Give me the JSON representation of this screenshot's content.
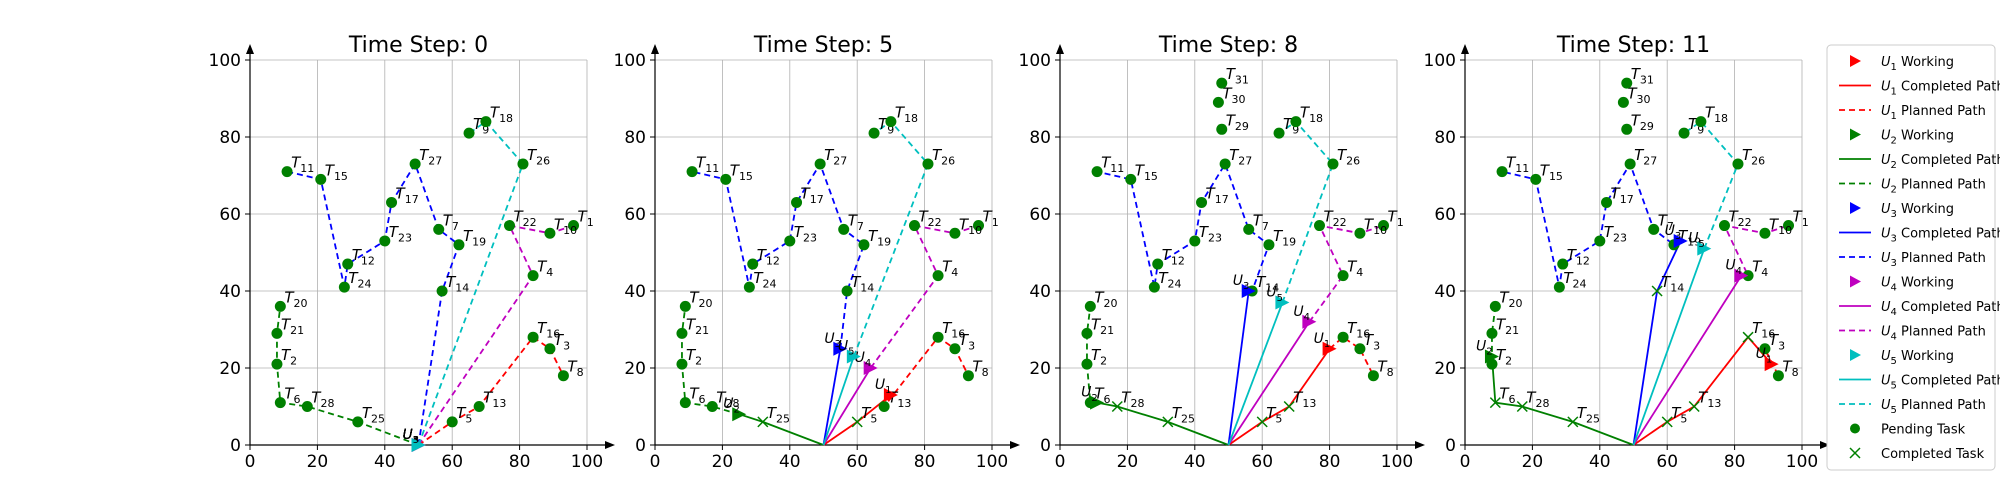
{
  "chart_data": {
    "type": "line",
    "axis": {
      "xlim": [
        0,
        100
      ],
      "ylim": [
        0,
        100
      ],
      "xticks": [
        0,
        20,
        40,
        60,
        80,
        100
      ],
      "yticks": [
        0,
        20,
        40,
        60,
        80,
        100
      ],
      "grid": true
    },
    "legend": {
      "placement": "right",
      "entries": [
        {
          "marker": "tri",
          "color": "#ff0000",
          "label_main": "U",
          "label_sub": "1",
          "label_rest": " Working"
        },
        {
          "marker": "solid",
          "color": "#ff0000",
          "label_main": "U",
          "label_sub": "1",
          "label_rest": " Completed Path"
        },
        {
          "marker": "dash",
          "color": "#ff0000",
          "label_main": "U",
          "label_sub": "1",
          "label_rest": " Planned Path"
        },
        {
          "marker": "tri",
          "color": "#008000",
          "label_main": "U",
          "label_sub": "2",
          "label_rest": " Working"
        },
        {
          "marker": "solid",
          "color": "#008000",
          "label_main": "U",
          "label_sub": "2",
          "label_rest": " Completed Path"
        },
        {
          "marker": "dash",
          "color": "#008000",
          "label_main": "U",
          "label_sub": "2",
          "label_rest": " Planned Path"
        },
        {
          "marker": "tri",
          "color": "#0000ff",
          "label_main": "U",
          "label_sub": "3",
          "label_rest": " Working"
        },
        {
          "marker": "solid",
          "color": "#0000ff",
          "label_main": "U",
          "label_sub": "3",
          "label_rest": " Completed Path"
        },
        {
          "marker": "dash",
          "color": "#0000ff",
          "label_main": "U",
          "label_sub": "3",
          "label_rest": " Planned Path"
        },
        {
          "marker": "tri",
          "color": "#bf00bf",
          "label_main": "U",
          "label_sub": "4",
          "label_rest": " Working"
        },
        {
          "marker": "solid",
          "color": "#bf00bf",
          "label_main": "U",
          "label_sub": "4",
          "label_rest": " Completed Path"
        },
        {
          "marker": "dash",
          "color": "#bf00bf",
          "label_main": "U",
          "label_sub": "4",
          "label_rest": " Planned Path"
        },
        {
          "marker": "tri",
          "color": "#00bfbf",
          "label_main": "U",
          "label_sub": "5",
          "label_rest": " Working"
        },
        {
          "marker": "solid",
          "color": "#00bfbf",
          "label_main": "U",
          "label_sub": "5",
          "label_rest": " Completed Path"
        },
        {
          "marker": "dash",
          "color": "#00bfbf",
          "label_main": "U",
          "label_sub": "5",
          "label_rest": " Planned Path"
        },
        {
          "marker": "dot",
          "color": "#008000",
          "label_main": "Pending Task",
          "label_sub": "",
          "label_rest": ""
        },
        {
          "marker": "x",
          "color": "#008000",
          "label_main": "Completed Task",
          "label_sub": "",
          "label_rest": ""
        }
      ]
    },
    "depot": [
      50,
      0
    ],
    "tasks": [
      {
        "id": "1",
        "x": 96,
        "y": 57
      },
      {
        "id": "2",
        "x": 8,
        "y": 21
      },
      {
        "id": "3",
        "x": 89,
        "y": 25
      },
      {
        "id": "4",
        "x": 84,
        "y": 44
      },
      {
        "id": "5",
        "x": 60,
        "y": 6
      },
      {
        "id": "6",
        "x": 9,
        "y": 11
      },
      {
        "id": "7",
        "x": 56,
        "y": 56
      },
      {
        "id": "8",
        "x": 93,
        "y": 18
      },
      {
        "id": "9",
        "x": 65,
        "y": 81
      },
      {
        "id": "10",
        "x": 89,
        "y": 55
      },
      {
        "id": "11",
        "x": 11,
        "y": 71
      },
      {
        "id": "12",
        "x": 29,
        "y": 47
      },
      {
        "id": "13",
        "x": 68,
        "y": 10
      },
      {
        "id": "14",
        "x": 57,
        "y": 40
      },
      {
        "id": "15",
        "x": 21,
        "y": 69
      },
      {
        "id": "16",
        "x": 84,
        "y": 28
      },
      {
        "id": "17",
        "x": 42,
        "y": 63
      },
      {
        "id": "18",
        "x": 70,
        "y": 84
      },
      {
        "id": "19",
        "x": 62,
        "y": 52
      },
      {
        "id": "20",
        "x": 9,
        "y": 36
      },
      {
        "id": "21",
        "x": 8,
        "y": 29
      },
      {
        "id": "22",
        "x": 77,
        "y": 57
      },
      {
        "id": "23",
        "x": 40,
        "y": 53
      },
      {
        "id": "24",
        "x": 28,
        "y": 41
      },
      {
        "id": "25",
        "x": 32,
        "y": 6
      },
      {
        "id": "26",
        "x": 81,
        "y": 73
      },
      {
        "id": "27",
        "x": 49,
        "y": 73
      },
      {
        "id": "28",
        "x": 17,
        "y": 10
      },
      {
        "id": "29",
        "x": 48,
        "y": 82
      },
      {
        "id": "30",
        "x": 47,
        "y": 89
      },
      {
        "id": "31",
        "x": 48,
        "y": 94
      }
    ],
    "routes": [
      {
        "uav": "1",
        "color": "#ff0000",
        "path": [
          "5",
          "13",
          "16",
          "3",
          "8"
        ]
      },
      {
        "uav": "2",
        "color": "#008000",
        "path": [
          "25",
          "28",
          "6",
          "2",
          "21",
          "20"
        ]
      },
      {
        "uav": "3",
        "color": "#0000ff",
        "path": [
          "14",
          "19",
          "7",
          "27",
          "17",
          "23",
          "12",
          "24",
          "15",
          "11"
        ]
      },
      {
        "uav": "4",
        "color": "#bf00bf",
        "path": [
          "4",
          "22",
          "10",
          "1"
        ]
      },
      {
        "uav": "5",
        "color": "#00bfbf",
        "path": [
          "26",
          "18",
          "9"
        ]
      }
    ],
    "panels": [
      {
        "title": "Time Step: 0",
        "visible_tasks": [
          "1",
          "2",
          "3",
          "4",
          "5",
          "6",
          "7",
          "8",
          "9",
          "10",
          "11",
          "12",
          "13",
          "14",
          "15",
          "16",
          "17",
          "18",
          "19",
          "20",
          "21",
          "22",
          "23",
          "24",
          "25",
          "26",
          "27",
          "28"
        ],
        "uav_pos": {
          "1": [
            50,
            0
          ],
          "2": [
            50,
            0
          ],
          "3": [
            50,
            0
          ],
          "4": [
            50,
            0
          ],
          "5": [
            50,
            0
          ]
        },
        "completed": {
          "1": [],
          "2": [],
          "3": [],
          "4": [],
          "5": []
        }
      },
      {
        "title": "Time Step: 5",
        "visible_tasks": [
          "1",
          "2",
          "3",
          "4",
          "5",
          "6",
          "7",
          "8",
          "9",
          "10",
          "11",
          "12",
          "13",
          "14",
          "15",
          "16",
          "17",
          "18",
          "19",
          "20",
          "21",
          "22",
          "23",
          "24",
          "25",
          "26",
          "27",
          "28"
        ],
        "uav_pos": {
          "1": [
            70,
            13
          ],
          "2": [
            25,
            8
          ],
          "3": [
            55,
            25
          ],
          "4": [
            64,
            20
          ],
          "5": [
            59,
            23
          ]
        },
        "completed": {
          "1": [
            "5"
          ],
          "2": [
            "25"
          ],
          "3": [],
          "4": [],
          "5": []
        }
      },
      {
        "title": "Time Step: 8",
        "visible_tasks": [
          "1",
          "2",
          "3",
          "4",
          "5",
          "6",
          "7",
          "8",
          "9",
          "10",
          "11",
          "12",
          "13",
          "14",
          "15",
          "16",
          "17",
          "18",
          "19",
          "20",
          "21",
          "22",
          "23",
          "24",
          "25",
          "26",
          "27",
          "28",
          "29",
          "30",
          "31"
        ],
        "uav_pos": {
          "1": [
            80,
            25
          ],
          "2": [
            11,
            11
          ],
          "3": [
            56,
            40
          ],
          "4": [
            74,
            32
          ],
          "5": [
            66,
            37
          ]
        },
        "completed": {
          "1": [
            "5",
            "13"
          ],
          "2": [
            "25",
            "28"
          ],
          "3": [],
          "4": [],
          "5": []
        }
      },
      {
        "title": "Time Step: 11",
        "visible_tasks": [
          "1",
          "2",
          "3",
          "4",
          "5",
          "6",
          "7",
          "8",
          "9",
          "10",
          "11",
          "12",
          "13",
          "14",
          "15",
          "16",
          "17",
          "18",
          "19",
          "20",
          "21",
          "22",
          "23",
          "24",
          "25",
          "26",
          "27",
          "28",
          "29",
          "30",
          "31"
        ],
        "uav_pos": {
          "1": [
            91,
            21
          ],
          "2": [
            8,
            23
          ],
          "3": [
            64,
            53
          ],
          "4": [
            82,
            44
          ],
          "5": [
            71,
            51
          ]
        },
        "completed": {
          "1": [
            "5",
            "13",
            "16"
          ],
          "2": [
            "25",
            "28",
            "6"
          ],
          "3": [
            "14"
          ],
          "4": [],
          "5": []
        }
      }
    ]
  }
}
